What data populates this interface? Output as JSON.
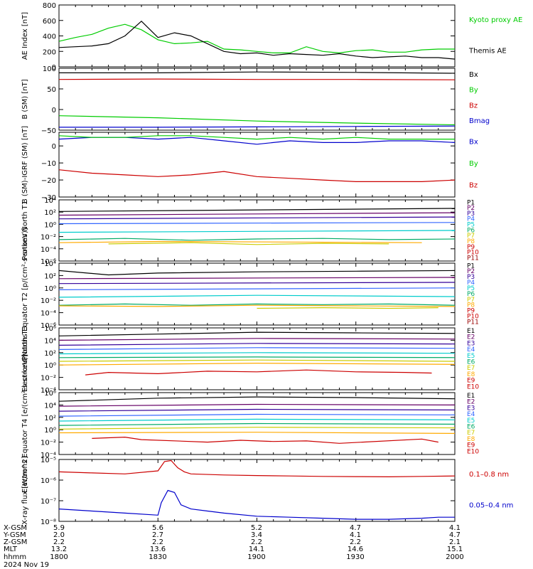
{
  "time_axis": {
    "start": "1800",
    "end": "2000",
    "date": "2024 Nov 19"
  },
  "colors": {
    "black": "#000000",
    "green": "#00cc00",
    "red": "#cc0000",
    "blue": "#0000cc",
    "purple": "#660066",
    "p3": "#330099",
    "p4": "#3366ff",
    "p5": "#00cccc",
    "p6": "#00aa66",
    "p7": "#cccc00",
    "p8": "#ffaa00",
    "p9": "#ff6600",
    "p10": "#cc0000",
    "p11": "#990000"
  },
  "chart_data": [
    {
      "type": "line",
      "ylabel": "AE Index [nT]",
      "ylim": [
        0,
        800
      ],
      "yticks": [
        0,
        200,
        400,
        600,
        800
      ],
      "series": [
        {
          "name": "Kyoto proxy AE",
          "color": "#00cc00",
          "x": [
            0,
            5,
            10,
            15,
            20,
            25,
            30,
            35,
            40,
            45,
            50,
            55,
            60,
            65,
            70,
            75,
            80,
            85,
            90,
            95,
            100,
            105,
            110,
            115,
            120
          ],
          "y": [
            330,
            380,
            420,
            500,
            550,
            480,
            350,
            300,
            310,
            330,
            230,
            220,
            200,
            180,
            180,
            260,
            200,
            180,
            210,
            220,
            190,
            190,
            220,
            230,
            230
          ]
        },
        {
          "name": "Themis AE",
          "color": "#000000",
          "x": [
            0,
            5,
            10,
            15,
            20,
            25,
            30,
            35,
            40,
            45,
            50,
            55,
            60,
            65,
            70,
            75,
            80,
            85,
            90,
            95,
            100,
            105,
            110,
            115,
            120
          ],
          "y": [
            250,
            260,
            270,
            300,
            400,
            590,
            380,
            440,
            400,
            300,
            200,
            170,
            180,
            150,
            170,
            160,
            150,
            170,
            140,
            120,
            130,
            140,
            120,
            120,
            100
          ]
        }
      ]
    },
    {
      "type": "line",
      "ylabel": "B (SM) [nT]",
      "ylim": [
        -50,
        100
      ],
      "yticks": [
        -50,
        0,
        50,
        100
      ],
      "ytick_labels": [
        "−50",
        "0",
        "50",
        "100"
      ],
      "series": [
        {
          "name": "Bx",
          "color": "#000000",
          "x": [
            0,
            30,
            60,
            90,
            120
          ],
          "y": [
            89,
            89,
            91,
            90,
            88
          ]
        },
        {
          "name": "By",
          "color": "#00cc00",
          "x": [
            0,
            30,
            60,
            90,
            120
          ],
          "y": [
            -15,
            -20,
            -28,
            -33,
            -37
          ]
        },
        {
          "name": "Bz",
          "color": "#cc0000",
          "x": [
            0,
            30,
            60,
            90,
            120
          ],
          "y": [
            73,
            74,
            73,
            73,
            72
          ]
        },
        {
          "name": "Bmag",
          "color": "#0000cc",
          "x": [
            0,
            30,
            60,
            90,
            120
          ],
          "y": [
            -43,
            -43,
            -42,
            -41,
            -40
          ]
        }
      ]
    },
    {
      "type": "line",
      "ylabel": "B (SM)-IGRF (SM) [nT]",
      "ylim": [
        -30,
        8
      ],
      "yticks": [
        -30,
        -20,
        -10,
        0
      ],
      "ytick_labels": [
        "−30",
        "−20",
        "−10",
        "0"
      ],
      "series": [
        {
          "name": "Bx",
          "color": "#0000cc",
          "x": [
            0,
            10,
            20,
            30,
            40,
            50,
            60,
            70,
            80,
            90,
            100,
            110,
            120
          ],
          "y": [
            4,
            5,
            5,
            4,
            5,
            3,
            1,
            3,
            2,
            2,
            3,
            3,
            2
          ]
        },
        {
          "name": "By",
          "color": "#00cc00",
          "x": [
            0,
            10,
            20,
            30,
            40,
            50,
            60,
            70,
            80,
            90,
            100,
            110,
            120
          ],
          "y": [
            6,
            5,
            5,
            6,
            6,
            5,
            4,
            5,
            4,
            5,
            4,
            4,
            4
          ]
        },
        {
          "name": "Bz",
          "color": "#cc0000",
          "x": [
            0,
            10,
            20,
            30,
            40,
            50,
            60,
            70,
            80,
            90,
            100,
            110,
            120
          ],
          "y": [
            -14,
            -16,
            -17,
            -18,
            -17,
            -15,
            -18,
            -19,
            -20,
            -21,
            -21,
            -21,
            -20
          ]
        }
      ]
    },
    {
      "type": "line",
      "ylabel": "Protons North T1",
      "log": true,
      "ylim": [
        -6,
        4
      ],
      "yticks": [
        -6,
        -4,
        -2,
        0,
        2,
        4
      ],
      "ytick_labels": [
        "10⁻⁶",
        "10⁻⁴",
        "10⁻²",
        "10⁰",
        "10²",
        "10⁴"
      ],
      "series": [
        {
          "name": "P1",
          "color": "#000000",
          "x": [
            0,
            120
          ],
          "y": [
            2.1,
            2.6
          ]
        },
        {
          "name": "P2",
          "color": "#660066",
          "x": [
            0,
            120
          ],
          "y": [
            1.5,
            1.9
          ]
        },
        {
          "name": "P3",
          "color": "#330099",
          "x": [
            0,
            120
          ],
          "y": [
            0.9,
            1.2
          ]
        },
        {
          "name": "P4",
          "color": "#3366ff",
          "x": [
            0,
            120
          ],
          "y": [
            0.1,
            0.3
          ]
        },
        {
          "name": "P5",
          "color": "#00cccc",
          "x": [
            0,
            120
          ],
          "y": [
            -1.3,
            -1.0
          ]
        },
        {
          "name": "P6",
          "color": "#00aa66",
          "x": [
            0,
            20,
            40,
            60,
            80,
            100,
            120
          ],
          "y": [
            -2.5,
            -2.3,
            -2.6,
            -2.4,
            -2.3,
            -2.5,
            -2.4
          ]
        },
        {
          "name": "P7",
          "color": "#cccc00",
          "x": [
            15,
            40,
            60,
            80,
            100
          ],
          "y": [
            -3.2,
            -3.0,
            -3.3,
            -3.1,
            -3.2
          ]
        },
        {
          "name": "P8",
          "color": "#ffaa00",
          "x": [
            0,
            30,
            70,
            110
          ],
          "y": [
            -3.0,
            -2.8,
            -2.9,
            -3.0
          ]
        }
      ],
      "legend": [
        "P1",
        "P2",
        "P3",
        "P4",
        "P5",
        "P6",
        "P7",
        "P8",
        "P9",
        "P10",
        "P11"
      ]
    },
    {
      "type": "line",
      "ylabel": "Protons Equator T2 [p/(cm²-s-sr-keV)]",
      "log": true,
      "ylim": [
        -6,
        4
      ],
      "yticks": [
        -6,
        -4,
        -2,
        0,
        2,
        4
      ],
      "ytick_labels": [
        "10⁻⁶",
        "10⁻⁴",
        "10⁻²",
        "10⁰",
        "10²",
        "10⁴"
      ],
      "series": [
        {
          "name": "P1",
          "color": "#000000",
          "x": [
            0,
            15,
            30,
            60,
            90,
            120
          ],
          "y": [
            2.8,
            2.1,
            2.4,
            2.6,
            2.7,
            2.8
          ]
        },
        {
          "name": "P2",
          "color": "#660066",
          "x": [
            0,
            120
          ],
          "y": [
            1.5,
            1.7
          ]
        },
        {
          "name": "P3",
          "color": "#330099",
          "x": [
            0,
            120
          ],
          "y": [
            0.7,
            0.9
          ]
        },
        {
          "name": "P4",
          "color": "#3366ff",
          "x": [
            0,
            120
          ],
          "y": [
            -0.3,
            0.0
          ]
        },
        {
          "name": "P5",
          "color": "#00cccc",
          "x": [
            0,
            60,
            120
          ],
          "y": [
            -1.5,
            -1.2,
            -1.4
          ]
        },
        {
          "name": "P6",
          "color": "#00aa66",
          "x": [
            0,
            20,
            40,
            60,
            80,
            100,
            120
          ],
          "y": [
            -2.8,
            -2.6,
            -2.8,
            -2.6,
            -2.7,
            -2.6,
            -2.8
          ]
        },
        {
          "name": "P7",
          "color": "#cccc00",
          "x": [
            60,
            80,
            100,
            115
          ],
          "y": [
            -3.3,
            -3.2,
            -3.3,
            -3.2
          ]
        },
        {
          "name": "P8",
          "color": "#ffaa00",
          "x": [
            0,
            30,
            60,
            90,
            120
          ],
          "y": [
            -2.9,
            -3.0,
            -2.8,
            -2.9,
            -3.0
          ]
        }
      ],
      "legend": [
        "P1",
        "P2",
        "P3",
        "P4",
        "P5",
        "P6",
        "P7",
        "P8",
        "P9",
        "P10",
        "P11"
      ]
    },
    {
      "type": "line",
      "ylabel": "Electrons North T3",
      "log": true,
      "ylim": [
        -4,
        6
      ],
      "yticks": [
        -4,
        -2,
        0,
        2,
        4,
        6
      ],
      "ytick_labels": [
        "10⁻⁴",
        "10⁻²",
        "10⁰",
        "10²",
        "10⁴",
        "10⁶"
      ],
      "series": [
        {
          "name": "E1",
          "color": "#000000",
          "x": [
            0,
            30,
            60,
            90,
            120
          ],
          "y": [
            4.7,
            5.0,
            5.3,
            5.2,
            5.1
          ]
        },
        {
          "name": "E2",
          "color": "#660066",
          "x": [
            0,
            60,
            120
          ],
          "y": [
            4.0,
            4.3,
            4.2
          ]
        },
        {
          "name": "E3",
          "color": "#330099",
          "x": [
            0,
            60,
            120
          ],
          "y": [
            3.2,
            3.5,
            3.4
          ]
        },
        {
          "name": "E4",
          "color": "#3366ff",
          "x": [
            0,
            60,
            120
          ],
          "y": [
            2.5,
            2.8,
            2.7
          ]
        },
        {
          "name": "E5",
          "color": "#00cccc",
          "x": [
            0,
            60,
            120
          ],
          "y": [
            1.8,
            2.0,
            1.9
          ]
        },
        {
          "name": "E6",
          "color": "#00aa66",
          "x": [
            0,
            60,
            120
          ],
          "y": [
            1.2,
            1.3,
            1.2
          ]
        },
        {
          "name": "E7",
          "color": "#cccc00",
          "x": [
            0,
            60,
            120
          ],
          "y": [
            0.6,
            0.8,
            0.6
          ]
        },
        {
          "name": "E8",
          "color": "#ffaa00",
          "x": [
            0,
            60,
            120
          ],
          "y": [
            0.0,
            0.3,
            0.1
          ]
        },
        {
          "name": "E9",
          "color": "#cc0000",
          "x": [
            8,
            15,
            30,
            45,
            60,
            75,
            90,
            105,
            113
          ],
          "y": [
            -1.6,
            -1.2,
            -1.4,
            -1.0,
            -1.1,
            -0.8,
            -1.1,
            -1.2,
            -1.3
          ]
        }
      ],
      "legend": [
        "E1",
        "E2",
        "E3",
        "E4",
        "E5",
        "E6",
        "E7",
        "E8",
        "E9",
        "E10"
      ]
    },
    {
      "type": "line",
      "ylabel": "Electrons Equator T4 [e/(cm²-s-sr-keV)]",
      "log": true,
      "ylim": [
        -4,
        6
      ],
      "yticks": [
        -4,
        -2,
        0,
        2,
        4,
        6
      ],
      "ytick_labels": [
        "10⁻⁴",
        "10⁻²",
        "10⁰",
        "10²",
        "10⁴",
        "10⁶"
      ],
      "series": [
        {
          "name": "E1",
          "color": "#000000",
          "x": [
            0,
            30,
            60,
            90,
            120
          ],
          "y": [
            4.6,
            5.1,
            5.3,
            5.2,
            5.0
          ]
        },
        {
          "name": "E2",
          "color": "#660066",
          "x": [
            0,
            60,
            120
          ],
          "y": [
            3.8,
            4.1,
            4.0
          ]
        },
        {
          "name": "E3",
          "color": "#330099",
          "x": [
            0,
            60,
            120
          ],
          "y": [
            3.0,
            3.3,
            3.2
          ]
        },
        {
          "name": "E4",
          "color": "#3366ff",
          "x": [
            0,
            60,
            120
          ],
          "y": [
            2.2,
            2.5,
            2.4
          ]
        },
        {
          "name": "E5",
          "color": "#00cccc",
          "x": [
            0,
            60,
            120
          ],
          "y": [
            1.4,
            1.7,
            1.6
          ]
        },
        {
          "name": "E6",
          "color": "#00aa66",
          "x": [
            0,
            60,
            120
          ],
          "y": [
            0.7,
            1.0,
            0.9
          ]
        },
        {
          "name": "E7",
          "color": "#cccc00",
          "x": [
            0,
            60,
            120
          ],
          "y": [
            0.1,
            0.4,
            0.3
          ]
        },
        {
          "name": "E8",
          "color": "#ffaa00",
          "x": [
            0,
            60,
            120
          ],
          "y": [
            -0.5,
            -0.4,
            -0.6
          ]
        },
        {
          "name": "E9",
          "color": "#cc0000",
          "x": [
            10,
            20,
            25,
            45,
            55,
            65,
            75,
            85,
            110,
            115
          ],
          "y": [
            -1.4,
            -1.2,
            -1.6,
            -2.0,
            -1.7,
            -1.9,
            -1.8,
            -2.2,
            -1.5,
            -2.0
          ]
        }
      ],
      "legend": [
        "E1",
        "E2",
        "E3",
        "E4",
        "E5",
        "E6",
        "E7",
        "E8",
        "E9",
        "E10"
      ]
    },
    {
      "type": "line",
      "ylabel": "X-ray flux [W/m^2]",
      "log": true,
      "ylim": [
        -8,
        -5
      ],
      "yticks": [
        -8,
        -7,
        -6,
        -5
      ],
      "ytick_labels": [
        "10⁻⁸",
        "10⁻⁷",
        "10⁻⁶",
        "10⁻⁵"
      ],
      "series": [
        {
          "name": "0.1–0.8 nm",
          "color": "#cc0000",
          "x": [
            0,
            10,
            20,
            30,
            32,
            34,
            36,
            38,
            40,
            50,
            60,
            70,
            80,
            90,
            100,
            110,
            120
          ],
          "y": [
            -5.6,
            -5.65,
            -5.7,
            -5.55,
            -5.1,
            -5.05,
            -5.4,
            -5.6,
            -5.7,
            -5.75,
            -5.78,
            -5.8,
            -5.82,
            -5.83,
            -5.84,
            -5.82,
            -5.8
          ]
        },
        {
          "name": "0.05–0.4 nm",
          "color": "#0000cc",
          "x": [
            0,
            10,
            20,
            30,
            31,
            33,
            35,
            37,
            40,
            45,
            50,
            60,
            70,
            80,
            90,
            100,
            110,
            115,
            120
          ],
          "y": [
            -7.4,
            -7.5,
            -7.6,
            -7.7,
            -7.1,
            -6.5,
            -6.6,
            -7.2,
            -7.4,
            -7.5,
            -7.6,
            -7.75,
            -7.8,
            -7.85,
            -7.9,
            -7.9,
            -7.85,
            -7.8,
            -7.8
          ]
        }
      ]
    }
  ],
  "ephemeris": {
    "rows": [
      {
        "label": "X-GSM",
        "values": [
          "5.9",
          "5.6",
          "5.2",
          "4.7",
          "4.1"
        ]
      },
      {
        "label": "Y-GSM",
        "values": [
          "2.0",
          "2.7",
          "3.4",
          "4.1",
          "4.7"
        ]
      },
      {
        "label": "Z-GSM",
        "values": [
          "2.2",
          "2.2",
          "2.2",
          "2.2",
          "2.1"
        ]
      },
      {
        "label": "MLT",
        "values": [
          "13.2",
          "13.6",
          "14.1",
          "14.6",
          "15.1"
        ]
      },
      {
        "label": "hhmm",
        "values": [
          "1800",
          "1830",
          "1900",
          "1930",
          "2000"
        ]
      }
    ],
    "date": "2024 Nov 19"
  }
}
